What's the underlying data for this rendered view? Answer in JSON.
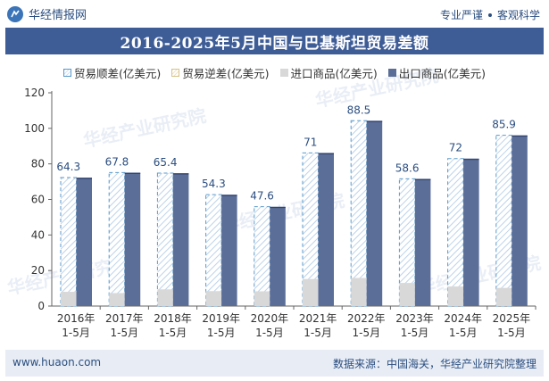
{
  "header": {
    "brand": "华经情报网",
    "tag1": "专业严谨",
    "tag2": "客观科学"
  },
  "title": "2016-2025年5月中国与巴基斯坦贸易差额",
  "legend": {
    "surplus": "贸易顺差(亿美元)",
    "deficit": "贸易逆差(亿美元)",
    "import": "进口商品(亿美元)",
    "export": "出口商品(亿美元)"
  },
  "watermark": "华经产业研究院",
  "footer": {
    "site": "www.huaon.com",
    "source": "数据来源：中国海关，华经产业研究院整理"
  },
  "colors": {
    "surplus_hatch": "#5a9acb",
    "import": "#d8d8d8",
    "export": "#5b6e98",
    "label": "#2b4e80"
  },
  "chart_data": {
    "type": "bar",
    "categories": [
      "2016年1-5月",
      "2017年1-5月",
      "2018年1-5月",
      "2019年1-5月",
      "2020年1-5月",
      "2021年1-5月",
      "2022年1-5月",
      "2023年1-5月",
      "2024年1-5月",
      "2025年1-5月"
    ],
    "x_tick_labels": [
      [
        "2016年",
        "1-5月"
      ],
      [
        "2017年",
        "1-5月"
      ],
      [
        "2018年",
        "1-5月"
      ],
      [
        "2019年",
        "1-5月"
      ],
      [
        "2020年",
        "1-5月"
      ],
      [
        "2021年",
        "1-5月"
      ],
      [
        "2022年",
        "1-5月"
      ],
      [
        "2023年",
        "1-5月"
      ],
      [
        "2024年",
        "1-5月"
      ],
      [
        "2025年",
        "1-5月"
      ]
    ],
    "series": [
      {
        "name": "贸易顺差(亿美元)",
        "values": [
          64.3,
          67.8,
          65.4,
          54.3,
          47.6,
          71,
          88.5,
          58.6,
          72,
          85.9
        ]
      },
      {
        "name": "贸易逆差(亿美元)",
        "values": [
          0,
          0,
          0,
          0,
          0,
          0,
          0,
          0,
          0,
          0
        ]
      },
      {
        "name": "进口商品(亿美元)",
        "values": [
          8,
          7.3,
          9.4,
          8.4,
          8.3,
          15.2,
          15.8,
          13,
          11,
          10.2
        ]
      },
      {
        "name": "出口商品(亿美元)",
        "values": [
          72.3,
          75.1,
          74.8,
          62.7,
          55.9,
          86.2,
          104.3,
          71.6,
          83,
          96.1
        ]
      }
    ],
    "data_labels": [
      "64.3",
      "67.8",
      "65.4",
      "54.3",
      "47.6",
      "71",
      "88.5",
      "58.6",
      "72",
      "85.9"
    ],
    "ylim": [
      0,
      120
    ],
    "yticks": [
      0,
      20,
      40,
      60,
      80,
      100,
      120
    ],
    "grid": false,
    "legend_position": "top"
  }
}
